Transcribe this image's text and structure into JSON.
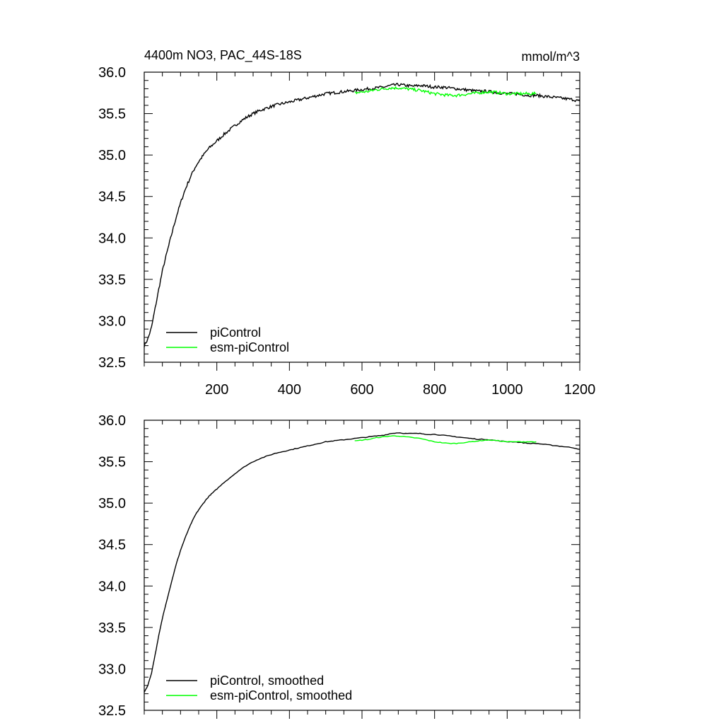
{
  "chart_data": [
    {
      "type": "line",
      "id": "raw",
      "title_left": "4400m NO3, PAC_44S-18S",
      "title_right": "mmol/m^3",
      "xlabel": "",
      "ylabel": "",
      "xlim": [
        0,
        1200
      ],
      "ylim": [
        32.5,
        36.0
      ],
      "x_ticks": [
        200,
        400,
        600,
        800,
        1000,
        1200
      ],
      "x_tick_labels_shown": true,
      "y_ticks": [
        32.5,
        33.0,
        33.5,
        34.0,
        34.5,
        35.0,
        35.5,
        36.0
      ],
      "y_tick_labels": [
        "32.5",
        "33.0",
        "33.5",
        "34.0",
        "34.5",
        "35.0",
        "35.5",
        "36.0"
      ],
      "grid": false,
      "legend_position": "bottom-left",
      "noisy": true,
      "series": [
        {
          "name": "piControl",
          "color": "#000000",
          "x": [
            0,
            10,
            20,
            30,
            40,
            50,
            60,
            70,
            80,
            90,
            100,
            110,
            120,
            130,
            140,
            150,
            160,
            170,
            180,
            190,
            200,
            220,
            240,
            260,
            280,
            300,
            320,
            340,
            360,
            380,
            400,
            420,
            440,
            460,
            480,
            500,
            520,
            540,
            560,
            580,
            600,
            620,
            640,
            660,
            680,
            700,
            720,
            740,
            760,
            780,
            800,
            820,
            840,
            860,
            880,
            900,
            920,
            940,
            960,
            980,
            1000,
            1020,
            1040,
            1060,
            1080,
            1100,
            1120,
            1140,
            1160,
            1180,
            1200
          ],
          "y": [
            32.7,
            32.78,
            32.92,
            33.15,
            33.38,
            33.6,
            33.78,
            33.95,
            34.12,
            34.28,
            34.42,
            34.55,
            34.66,
            34.76,
            34.85,
            34.92,
            34.98,
            35.04,
            35.09,
            35.13,
            35.17,
            35.25,
            35.32,
            35.39,
            35.45,
            35.5,
            35.54,
            35.57,
            35.6,
            35.62,
            35.64,
            35.66,
            35.68,
            35.7,
            35.72,
            35.74,
            35.75,
            35.76,
            35.77,
            35.78,
            35.79,
            35.8,
            35.81,
            35.82,
            35.84,
            35.85,
            35.84,
            35.83,
            35.84,
            35.83,
            35.82,
            35.82,
            35.81,
            35.8,
            35.79,
            35.78,
            35.77,
            35.77,
            35.76,
            35.75,
            35.74,
            35.74,
            35.73,
            35.72,
            35.72,
            35.71,
            35.7,
            35.69,
            35.68,
            35.67,
            35.65
          ]
        },
        {
          "name": "esm-piControl",
          "color": "#00ff00",
          "x": [
            580,
            600,
            620,
            640,
            660,
            680,
            700,
            720,
            740,
            760,
            780,
            800,
            820,
            840,
            860,
            880,
            900,
            920,
            940,
            960,
            980,
            1000,
            1020,
            1040,
            1060,
            1080
          ],
          "y": [
            35.75,
            35.76,
            35.77,
            35.79,
            35.8,
            35.81,
            35.81,
            35.8,
            35.79,
            35.78,
            35.76,
            35.74,
            35.73,
            35.72,
            35.72,
            35.73,
            35.74,
            35.75,
            35.76,
            35.76,
            35.75,
            35.74,
            35.74,
            35.74,
            35.74,
            35.74
          ]
        }
      ]
    },
    {
      "type": "line",
      "id": "smoothed",
      "xlabel": "",
      "ylabel": "",
      "xlim": [
        0,
        1200
      ],
      "ylim": [
        32.5,
        36.0
      ],
      "x_ticks": [
        200,
        400,
        600,
        800,
        1000,
        1200
      ],
      "x_tick_labels_shown": false,
      "y_ticks": [
        32.5,
        33.0,
        33.5,
        34.0,
        34.5,
        35.0,
        35.5,
        36.0
      ],
      "y_tick_labels": [
        "32.5",
        "33.0",
        "33.5",
        "34.0",
        "34.5",
        "35.0",
        "35.5",
        "36.0"
      ],
      "grid": false,
      "legend_position": "bottom-left",
      "noisy": false,
      "series": [
        {
          "name": "piControl, smoothed",
          "color": "#000000",
          "x": [
            0,
            10,
            20,
            30,
            40,
            50,
            60,
            70,
            80,
            90,
            100,
            110,
            120,
            130,
            140,
            150,
            160,
            170,
            180,
            190,
            200,
            220,
            240,
            260,
            280,
            300,
            320,
            340,
            360,
            380,
            400,
            420,
            440,
            460,
            480,
            500,
            520,
            540,
            560,
            580,
            600,
            620,
            640,
            660,
            680,
            700,
            720,
            740,
            760,
            780,
            800,
            820,
            840,
            860,
            880,
            900,
            920,
            940,
            960,
            980,
            1000,
            1020,
            1040,
            1060,
            1080,
            1100,
            1120,
            1140,
            1160,
            1180,
            1200
          ],
          "y": [
            32.72,
            32.8,
            32.95,
            33.17,
            33.4,
            33.61,
            33.79,
            33.96,
            34.13,
            34.29,
            34.43,
            34.55,
            34.66,
            34.76,
            34.85,
            34.92,
            34.98,
            35.04,
            35.09,
            35.13,
            35.17,
            35.25,
            35.32,
            35.39,
            35.45,
            35.5,
            35.54,
            35.57,
            35.6,
            35.62,
            35.64,
            35.66,
            35.68,
            35.7,
            35.72,
            35.74,
            35.75,
            35.76,
            35.77,
            35.78,
            35.79,
            35.8,
            35.81,
            35.82,
            35.84,
            35.85,
            35.84,
            35.84,
            35.84,
            35.83,
            35.83,
            35.82,
            35.81,
            35.8,
            35.79,
            35.78,
            35.77,
            35.77,
            35.76,
            35.75,
            35.74,
            35.74,
            35.73,
            35.72,
            35.72,
            35.71,
            35.7,
            35.69,
            35.68,
            35.67,
            35.65
          ]
        },
        {
          "name": "esm-piControl, smoothed",
          "color": "#00ff00",
          "x": [
            580,
            600,
            620,
            640,
            660,
            680,
            700,
            720,
            740,
            760,
            780,
            800,
            820,
            840,
            860,
            880,
            900,
            920,
            940,
            960,
            980,
            1000,
            1020,
            1040,
            1060,
            1080
          ],
          "y": [
            35.75,
            35.76,
            35.77,
            35.79,
            35.8,
            35.81,
            35.81,
            35.8,
            35.79,
            35.78,
            35.76,
            35.74,
            35.73,
            35.72,
            35.72,
            35.73,
            35.74,
            35.75,
            35.76,
            35.76,
            35.75,
            35.74,
            35.74,
            35.74,
            35.74,
            35.74
          ]
        }
      ]
    }
  ]
}
